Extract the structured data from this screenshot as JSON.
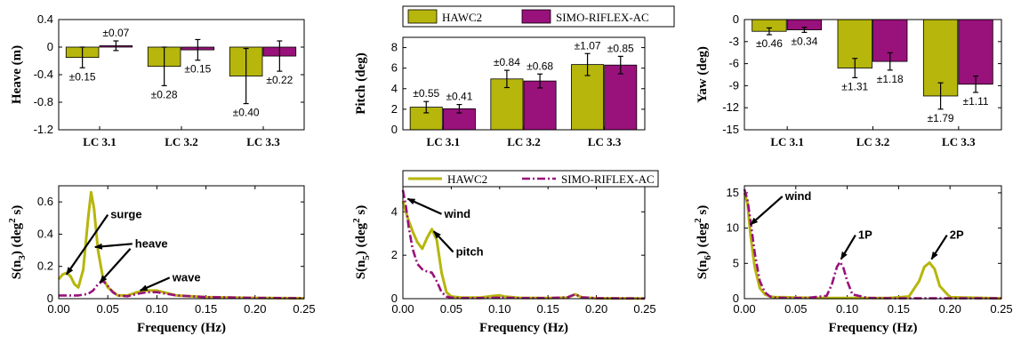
{
  "colors": {
    "hawc2": "#b6b60c",
    "simo": "#99117b"
  },
  "legend": {
    "series": [
      "HAWC2",
      "SIMO-RIFLEX-AC"
    ]
  },
  "chart_data": [
    {
      "type": "bar",
      "ylabel": "Heave (m)",
      "categories": [
        "LC 3.1",
        "LC 3.2",
        "LC 3.3"
      ],
      "ylim": [
        -1.2,
        0.4
      ],
      "yticks": [
        "-1.2",
        "-0.8",
        "-0.4",
        "0",
        "0.4"
      ],
      "series": [
        {
          "name": "HAWC2",
          "values": [
            -0.15,
            -0.28,
            -0.42
          ],
          "errors": [
            0.15,
            0.28,
            0.4
          ],
          "labels": [
            "±0.15",
            "±0.28",
            "±0.40"
          ]
        },
        {
          "name": "SIMO-RIFLEX-AC",
          "values": [
            0.02,
            -0.04,
            -0.13
          ],
          "errors": [
            0.07,
            0.15,
            0.22
          ],
          "labels": [
            "±0.07",
            "±0.15",
            "±0.22"
          ]
        }
      ]
    },
    {
      "type": "bar",
      "ylabel": "Pitch (deg)",
      "categories": [
        "LC 3.1",
        "LC 3.2",
        "LC 3.3"
      ],
      "ylim": [
        0,
        9
      ],
      "yticks": [
        "0",
        "2",
        "4",
        "6",
        "8"
      ],
      "series": [
        {
          "name": "HAWC2",
          "values": [
            2.2,
            4.95,
            6.35
          ],
          "errors": [
            0.55,
            0.84,
            1.07
          ],
          "labels": [
            "±0.55",
            "±0.84",
            "±1.07"
          ]
        },
        {
          "name": "SIMO-RIFLEX-AC",
          "values": [
            2.05,
            4.75,
            6.3
          ],
          "errors": [
            0.41,
            0.68,
            0.85
          ],
          "labels": [
            "±0.41",
            "±0.68",
            "±0.85"
          ]
        }
      ]
    },
    {
      "type": "bar",
      "ylabel": "Yaw (deg)",
      "categories": [
        "LC 3.1",
        "LC 3.2",
        "LC 3.3"
      ],
      "ylim": [
        -15,
        0
      ],
      "yticks": [
        "-15",
        "-12",
        "-9",
        "-6",
        "-3",
        "0"
      ],
      "series": [
        {
          "name": "HAWC2",
          "values": [
            -1.6,
            -6.6,
            -10.4
          ],
          "errors": [
            0.46,
            1.31,
            1.79
          ],
          "labels": [
            "±0.46",
            "±1.31",
            "±1.79"
          ]
        },
        {
          "name": "SIMO-RIFLEX-AC",
          "values": [
            -1.4,
            -5.7,
            -8.8
          ],
          "errors": [
            0.34,
            1.18,
            1.11
          ],
          "labels": [
            "±0.34",
            "±1.18",
            "±1.11"
          ]
        }
      ]
    },
    {
      "type": "line",
      "ylabel": "S(n3) (deg2 s)",
      "ylabel_parts": [
        "S(n",
        "3",
        ") (deg",
        "2",
        " s)"
      ],
      "xlabel": "Frequency (Hz)",
      "xlim": [
        0,
        0.25
      ],
      "ylim": [
        0,
        0.7
      ],
      "xticks": [
        "0.00",
        "0.05",
        "0.10",
        "0.15",
        "0.20",
        "0.25"
      ],
      "yticks": [
        "0",
        "0.2",
        "0.4",
        "0.6"
      ],
      "series": [
        {
          "name": "HAWC2",
          "x": [
            0,
            0.004,
            0.008,
            0.012,
            0.016,
            0.02,
            0.025,
            0.03,
            0.033,
            0.036,
            0.04,
            0.045,
            0.05,
            0.06,
            0.07,
            0.08,
            0.09,
            0.1,
            0.11,
            0.12,
            0.15,
            0.2,
            0.25
          ],
          "y": [
            0.12,
            0.15,
            0.16,
            0.14,
            0.09,
            0.07,
            0.18,
            0.5,
            0.66,
            0.56,
            0.3,
            0.13,
            0.07,
            0.02,
            0.02,
            0.04,
            0.05,
            0.05,
            0.035,
            0.02,
            0.01,
            0.005,
            0.003
          ]
        },
        {
          "name": "SIMO-RIFLEX-AC",
          "x": [
            0,
            0.01,
            0.02,
            0.03,
            0.035,
            0.04,
            0.045,
            0.05,
            0.055,
            0.06,
            0.07,
            0.08,
            0.09,
            0.1,
            0.11,
            0.12,
            0.15,
            0.2,
            0.25
          ],
          "y": [
            0.02,
            0.02,
            0.02,
            0.03,
            0.05,
            0.09,
            0.11,
            0.08,
            0.04,
            0.02,
            0.015,
            0.03,
            0.04,
            0.04,
            0.03,
            0.02,
            0.01,
            0.005,
            0.003
          ]
        }
      ],
      "annotations": [
        {
          "text": "surge",
          "x": 0.05,
          "y": 0.52,
          "tx": 0.008,
          "ty": 0.15
        },
        {
          "text": "heave",
          "x": 0.075,
          "y": 0.34,
          "tx": 0.037,
          "ty": 0.32
        },
        {
          "text": "",
          "x": 0.073,
          "y": 0.31,
          "tx": 0.042,
          "ty": 0.1
        },
        {
          "text": "wave",
          "x": 0.113,
          "y": 0.13,
          "tx": 0.083,
          "ty": 0.05
        }
      ]
    },
    {
      "type": "line",
      "ylabel": "S(n5) (deg2 s)",
      "ylabel_parts": [
        "S(n",
        "5",
        ") (deg",
        "2",
        " s)"
      ],
      "xlabel": "Frequency (Hz)",
      "xlim": [
        0,
        0.25
      ],
      "ylim": [
        0,
        5.2
      ],
      "xticks": [
        "0.00",
        "0.05",
        "0.10",
        "0.15",
        "0.20",
        "0.25"
      ],
      "yticks": [
        "0",
        "2",
        "4"
      ],
      "series": [
        {
          "name": "HAWC2",
          "x": [
            0,
            0.003,
            0.006,
            0.01,
            0.015,
            0.02,
            0.025,
            0.03,
            0.035,
            0.04,
            0.045,
            0.05,
            0.06,
            0.08,
            0.095,
            0.1,
            0.105,
            0.12,
            0.15,
            0.17,
            0.178,
            0.185,
            0.2,
            0.25
          ],
          "y": [
            4.5,
            4.0,
            3.6,
            3.1,
            2.6,
            2.3,
            2.8,
            3.2,
            2.7,
            1.2,
            0.3,
            0.1,
            0.05,
            0.05,
            0.13,
            0.15,
            0.1,
            0.04,
            0.03,
            0.05,
            0.2,
            0.06,
            0.02,
            0.01
          ]
        },
        {
          "name": "SIMO-RIFLEX-AC",
          "x": [
            0,
            0.003,
            0.006,
            0.01,
            0.015,
            0.02,
            0.025,
            0.03,
            0.035,
            0.04,
            0.045,
            0.05,
            0.06,
            0.08,
            0.1,
            0.12,
            0.15,
            0.17,
            0.178,
            0.185,
            0.2,
            0.25
          ],
          "y": [
            5.0,
            4.3,
            3.3,
            2.3,
            1.6,
            1.35,
            1.25,
            1.2,
            0.8,
            0.3,
            0.1,
            0.05,
            0.03,
            0.03,
            0.05,
            0.03,
            0.03,
            0.06,
            0.2,
            0.06,
            0.02,
            0.01
          ]
        }
      ],
      "annotations": [
        {
          "text": "wind",
          "x": 0.04,
          "y": 3.9,
          "tx": 0.005,
          "ty": 4.6
        },
        {
          "text": "pitch",
          "x": 0.052,
          "y": 2.15,
          "tx": 0.032,
          "ty": 3.1
        }
      ]
    },
    {
      "type": "line",
      "ylabel": "S(n6) (deg2 s)",
      "ylabel_parts": [
        "S(n",
        "6",
        ") (deg",
        "2",
        " s)"
      ],
      "xlabel": "Frequency (Hz)",
      "xlim": [
        0,
        0.25
      ],
      "ylim": [
        0,
        16
      ],
      "xticks": [
        "0.00",
        "0.05",
        "0.10",
        "0.15",
        "0.20",
        "0.25"
      ],
      "yticks": [
        "0",
        "5",
        "10",
        "15"
      ],
      "series": [
        {
          "name": "HAWC2",
          "x": [
            0,
            0.003,
            0.006,
            0.01,
            0.015,
            0.02,
            0.025,
            0.03,
            0.04,
            0.05,
            0.08,
            0.1,
            0.14,
            0.16,
            0.17,
            0.175,
            0.18,
            0.185,
            0.19,
            0.2,
            0.25
          ],
          "y": [
            15,
            13.5,
            9,
            4.5,
            1.5,
            0.6,
            0.3,
            0.2,
            0.2,
            0.15,
            0.1,
            0.1,
            0.1,
            0.3,
            2.5,
            4.5,
            5.1,
            4.2,
            1.8,
            0.2,
            0.05
          ]
        },
        {
          "name": "SIMO-RIFLEX-AC",
          "x": [
            0,
            0.003,
            0.006,
            0.01,
            0.015,
            0.02,
            0.025,
            0.03,
            0.04,
            0.06,
            0.08,
            0.085,
            0.09,
            0.093,
            0.096,
            0.1,
            0.105,
            0.12,
            0.15,
            0.2,
            0.25
          ],
          "y": [
            15.5,
            14,
            11,
            6.5,
            2.5,
            0.9,
            0.3,
            0.15,
            0.1,
            0.1,
            0.4,
            2.0,
            4.5,
            5.2,
            4.5,
            2.5,
            0.6,
            0.1,
            0.05,
            0.05,
            0.05
          ]
        }
      ],
      "annotations": [
        {
          "text": "wind",
          "x": 0.037,
          "y": 14.5,
          "tx": 0.006,
          "ty": 10.5
        },
        {
          "text": "1P",
          "x": 0.108,
          "y": 9.0,
          "tx": 0.094,
          "ty": 5.6
        },
        {
          "text": "2P",
          "x": 0.197,
          "y": 9.0,
          "tx": 0.182,
          "ty": 5.6
        }
      ]
    }
  ]
}
